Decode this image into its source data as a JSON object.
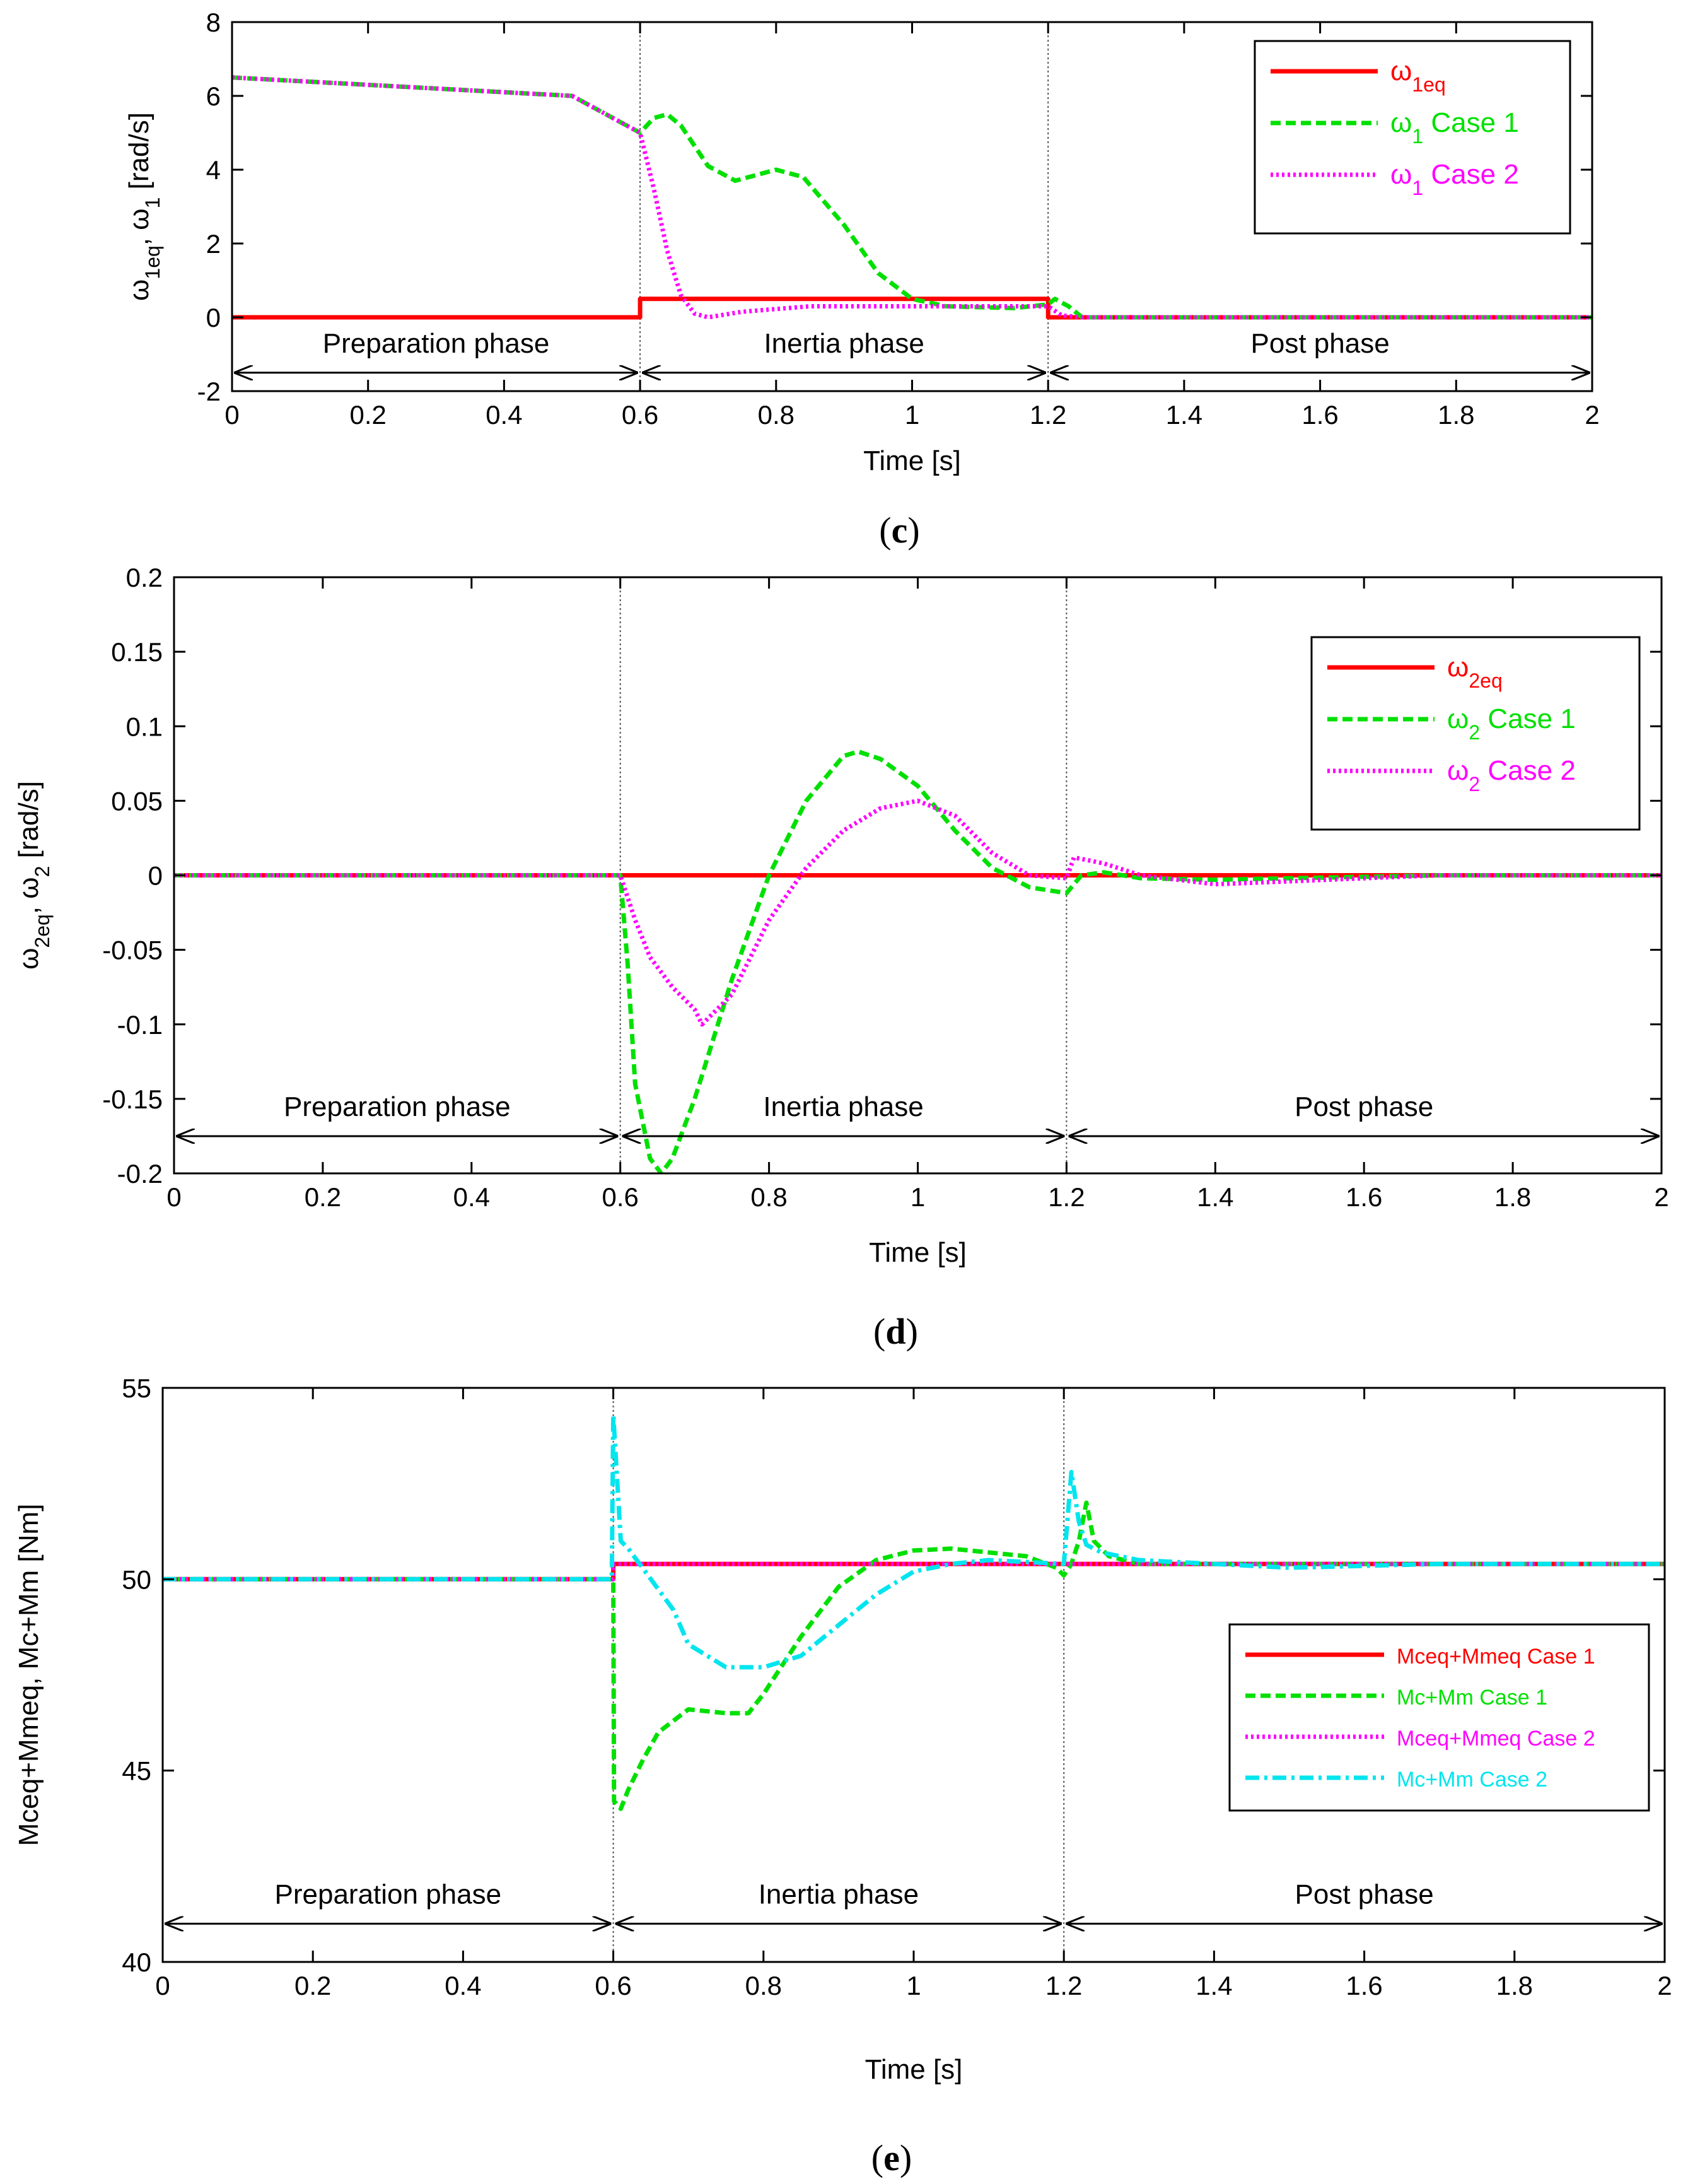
{
  "figure": {
    "panels": [
      {
        "id": "c",
        "label": "(c)",
        "xlabel": "Time [s]",
        "ylabel": "ω_{1eq}, ω_{1} [rad/s]",
        "xlim": [
          0,
          2
        ],
        "ylim": [
          -2,
          8
        ],
        "xticks": [
          0,
          0.2,
          0.4,
          0.6,
          0.8,
          1,
          1.2,
          1.4,
          1.6,
          1.8,
          2
        ],
        "yticks": [
          -2,
          0,
          2,
          4,
          6,
          8
        ],
        "phase_boundaries": [
          0.6,
          1.2
        ],
        "phase_arrow_y": -1.5,
        "phases": [
          {
            "name": "Preparation phase",
            "center": 0.3
          },
          {
            "name": "Inertia phase",
            "center": 0.9
          },
          {
            "name": "Post phase",
            "center": 1.6
          }
        ],
        "legend": [
          {
            "base": "ω",
            "sub": "1eq",
            "suffix": "",
            "color": "#ff0000",
            "style": "solid"
          },
          {
            "base": "ω",
            "sub": "1",
            "suffix": " Case 1",
            "color": "#00e000",
            "style": "dashed"
          },
          {
            "base": "ω",
            "sub": "1",
            "suffix": " Case 2",
            "color": "#ff00ff",
            "style": "dotted"
          }
        ]
      },
      {
        "id": "d",
        "label": "(d)",
        "xlabel": "Time [s]",
        "ylabel": "ω_{2eq}, ω_{2} [rad/s]",
        "xlim": [
          0,
          2
        ],
        "ylim": [
          -0.2,
          0.2
        ],
        "xticks": [
          0,
          0.2,
          0.4,
          0.6,
          0.8,
          1,
          1.2,
          1.4,
          1.6,
          1.8,
          2
        ],
        "yticks": [
          -0.2,
          -0.15,
          -0.1,
          -0.05,
          0,
          0.05,
          0.1,
          0.15,
          0.2
        ],
        "phase_boundaries": [
          0.6,
          1.2
        ],
        "phase_arrow_y": -0.175,
        "phases": [
          {
            "name": "Preparation phase",
            "center": 0.3
          },
          {
            "name": "Inertia phase",
            "center": 0.9
          },
          {
            "name": "Post phase",
            "center": 1.6
          }
        ],
        "legend": [
          {
            "base": "ω",
            "sub": "2eq",
            "suffix": "",
            "color": "#ff0000",
            "style": "solid"
          },
          {
            "base": "ω",
            "sub": "2",
            "suffix": " Case 1",
            "color": "#00e000",
            "style": "dashed"
          },
          {
            "base": "ω",
            "sub": "2",
            "suffix": " Case 2",
            "color": "#ff00ff",
            "style": "dotted"
          }
        ]
      },
      {
        "id": "e",
        "label": "(e)",
        "xlabel": "Time [s]",
        "ylabel": "Mceq+Mmeq, Mc+Mm [Nm]",
        "xlim": [
          0,
          2
        ],
        "ylim": [
          40,
          55
        ],
        "xticks": [
          0,
          0.2,
          0.4,
          0.6,
          0.8,
          1,
          1.2,
          1.4,
          1.6,
          1.8,
          2
        ],
        "yticks": [
          40,
          45,
          50,
          55
        ],
        "phase_boundaries": [
          0.6,
          1.2
        ],
        "phase_arrow_y": 41,
        "phases": [
          {
            "name": "Preparation phase",
            "center": 0.3
          },
          {
            "name": "Inertia phase",
            "center": 0.9
          },
          {
            "name": "Post phase",
            "center": 1.6
          }
        ],
        "legend": [
          {
            "base": "Mceq+Mmeq Case 1",
            "sub": "",
            "suffix": "",
            "color": "#ff0000",
            "style": "solid"
          },
          {
            "base": "Mc+Mm Case 1",
            "sub": "",
            "suffix": "",
            "color": "#00e000",
            "style": "dashed"
          },
          {
            "base": "Mceq+Mmeq Case 2",
            "sub": "",
            "suffix": "",
            "color": "#ff00ff",
            "style": "dotted"
          },
          {
            "base": "Mc+Mm Case 2",
            "sub": "",
            "suffix": "",
            "color": "#00e5ee",
            "style": "dashdot"
          }
        ]
      }
    ]
  },
  "chart_data": [
    {
      "type": "line",
      "title": "(c)",
      "xlabel": "Time [s]",
      "ylabel": "ω1eq, ω1 [rad/s]",
      "xlim": [
        0,
        2
      ],
      "ylim": [
        -2,
        8
      ],
      "series": [
        {
          "name": "ω1eq",
          "color": "#ff0000",
          "style": "solid",
          "points": [
            [
              0,
              0
            ],
            [
              0.6,
              0
            ],
            [
              0.6,
              0.5
            ],
            [
              1.2,
              0.5
            ],
            [
              1.2,
              0
            ],
            [
              2,
              0
            ]
          ]
        },
        {
          "name": "ω1 Case 1",
          "color": "#00e000",
          "style": "dashed",
          "points": [
            [
              0,
              6.5
            ],
            [
              0.5,
              6.0
            ],
            [
              0.6,
              5.0
            ],
            [
              0.62,
              5.4
            ],
            [
              0.64,
              5.5
            ],
            [
              0.66,
              5.2
            ],
            [
              0.7,
              4.1
            ],
            [
              0.74,
              3.7
            ],
            [
              0.8,
              4.0
            ],
            [
              0.84,
              3.8
            ],
            [
              0.9,
              2.5
            ],
            [
              0.95,
              1.2
            ],
            [
              1.0,
              0.5
            ],
            [
              1.05,
              0.3
            ],
            [
              1.15,
              0.25
            ],
            [
              1.2,
              0.35
            ],
            [
              1.21,
              0.5
            ],
            [
              1.23,
              0.3
            ],
            [
              1.25,
              0
            ],
            [
              2,
              0
            ]
          ]
        },
        {
          "name": "ω1 Case 2",
          "color": "#ff00ff",
          "style": "dotted",
          "points": [
            [
              0,
              6.5
            ],
            [
              0.5,
              6.0
            ],
            [
              0.6,
              5.0
            ],
            [
              0.62,
              3.5
            ],
            [
              0.64,
              1.8
            ],
            [
              0.66,
              0.6
            ],
            [
              0.68,
              0.1
            ],
            [
              0.7,
              0.0
            ],
            [
              0.75,
              0.15
            ],
            [
              0.85,
              0.3
            ],
            [
              1.0,
              0.3
            ],
            [
              1.1,
              0.3
            ],
            [
              1.2,
              0.3
            ],
            [
              1.22,
              0.05
            ],
            [
              1.25,
              0
            ],
            [
              2,
              0
            ]
          ]
        }
      ]
    },
    {
      "type": "line",
      "title": "(d)",
      "xlabel": "Time [s]",
      "ylabel": "ω2eq, ω2 [rad/s]",
      "xlim": [
        0,
        2
      ],
      "ylim": [
        -0.2,
        0.2
      ],
      "series": [
        {
          "name": "ω2eq",
          "color": "#ff0000",
          "style": "solid",
          "points": [
            [
              0,
              0
            ],
            [
              2,
              0
            ]
          ]
        },
        {
          "name": "ω2 Case 1",
          "color": "#00e000",
          "style": "dashed",
          "points": [
            [
              0,
              0
            ],
            [
              0.6,
              0
            ],
            [
              0.61,
              -0.06
            ],
            [
              0.62,
              -0.14
            ],
            [
              0.64,
              -0.19
            ],
            [
              0.655,
              -0.2
            ],
            [
              0.67,
              -0.19
            ],
            [
              0.7,
              -0.15
            ],
            [
              0.75,
              -0.07
            ],
            [
              0.8,
              0.0
            ],
            [
              0.85,
              0.05
            ],
            [
              0.9,
              0.08
            ],
            [
              0.92,
              0.083
            ],
            [
              0.95,
              0.078
            ],
            [
              1.0,
              0.06
            ],
            [
              1.05,
              0.03
            ],
            [
              1.1,
              0.005
            ],
            [
              1.15,
              -0.008
            ],
            [
              1.2,
              -0.012
            ],
            [
              1.22,
              0.0
            ],
            [
              1.25,
              0.002
            ],
            [
              1.3,
              -0.002
            ],
            [
              1.4,
              -0.003
            ],
            [
              1.5,
              -0.002
            ],
            [
              1.7,
              0.0
            ],
            [
              2,
              0
            ]
          ]
        },
        {
          "name": "ω2 Case 2",
          "color": "#ff00ff",
          "style": "dotted",
          "points": [
            [
              0,
              0
            ],
            [
              0.6,
              0
            ],
            [
              0.62,
              -0.03
            ],
            [
              0.64,
              -0.055
            ],
            [
              0.67,
              -0.075
            ],
            [
              0.7,
              -0.09
            ],
            [
              0.71,
              -0.1
            ],
            [
              0.75,
              -0.08
            ],
            [
              0.8,
              -0.03
            ],
            [
              0.85,
              0.005
            ],
            [
              0.9,
              0.03
            ],
            [
              0.95,
              0.045
            ],
            [
              1.0,
              0.05
            ],
            [
              1.05,
              0.04
            ],
            [
              1.1,
              0.015
            ],
            [
              1.15,
              0.0
            ],
            [
              1.2,
              -0.002
            ],
            [
              1.21,
              0.012
            ],
            [
              1.25,
              0.008
            ],
            [
              1.3,
              0.0
            ],
            [
              1.4,
              -0.006
            ],
            [
              1.5,
              -0.004
            ],
            [
              1.6,
              -0.002
            ],
            [
              1.7,
              0.0
            ],
            [
              2,
              0
            ]
          ]
        }
      ]
    },
    {
      "type": "line",
      "title": "(e)",
      "xlabel": "Time [s]",
      "ylabel": "Mceq+Mmeq, Mc+Mm [Nm]",
      "xlim": [
        0,
        2
      ],
      "ylim": [
        40,
        55
      ],
      "series": [
        {
          "name": "Mceq+Mmeq Case 1",
          "color": "#ff0000",
          "style": "solid",
          "points": [
            [
              0,
              50
            ],
            [
              0.6,
              50
            ],
            [
              0.6,
              50.4
            ],
            [
              2,
              50.4
            ]
          ]
        },
        {
          "name": "Mc+Mm Case 1",
          "color": "#00e000",
          "style": "dashed",
          "points": [
            [
              0,
              50
            ],
            [
              0.6,
              50
            ],
            [
              0.601,
              44.2
            ],
            [
              0.61,
              44.0
            ],
            [
              0.62,
              44.5
            ],
            [
              0.64,
              45.3
            ],
            [
              0.66,
              46.0
            ],
            [
              0.7,
              46.6
            ],
            [
              0.75,
              46.5
            ],
            [
              0.78,
              46.5
            ],
            [
              0.8,
              47.0
            ],
            [
              0.85,
              48.5
            ],
            [
              0.9,
              49.8
            ],
            [
              0.95,
              50.5
            ],
            [
              1.0,
              50.75
            ],
            [
              1.05,
              50.8
            ],
            [
              1.1,
              50.7
            ],
            [
              1.15,
              50.6
            ],
            [
              1.19,
              50.3
            ],
            [
              1.2,
              50.1
            ],
            [
              1.21,
              50.4
            ],
            [
              1.22,
              51.0
            ],
            [
              1.23,
              52.0
            ],
            [
              1.24,
              51.0
            ],
            [
              1.26,
              50.6
            ],
            [
              1.3,
              50.4
            ],
            [
              1.5,
              50.4
            ],
            [
              2,
              50.4
            ]
          ]
        },
        {
          "name": "Mceq+Mmeq Case 2",
          "color": "#ff00ff",
          "style": "dotted",
          "points": [
            [
              0,
              50
            ],
            [
              0.6,
              50
            ],
            [
              0.6,
              50.4
            ],
            [
              2,
              50.4
            ]
          ]
        },
        {
          "name": "Mc+Mm Case 2",
          "color": "#00e5ee",
          "style": "dashdot",
          "points": [
            [
              0,
              50
            ],
            [
              0.598,
              50
            ],
            [
              0.6,
              54.3
            ],
            [
              0.61,
              51.0
            ],
            [
              0.62,
              50.8
            ],
            [
              0.65,
              50.0
            ],
            [
              0.68,
              49.2
            ],
            [
              0.7,
              48.3
            ],
            [
              0.75,
              47.7
            ],
            [
              0.8,
              47.7
            ],
            [
              0.85,
              48.0
            ],
            [
              0.9,
              48.8
            ],
            [
              0.95,
              49.6
            ],
            [
              1.0,
              50.2
            ],
            [
              1.05,
              50.4
            ],
            [
              1.1,
              50.5
            ],
            [
              1.15,
              50.45
            ],
            [
              1.2,
              50.4
            ],
            [
              1.21,
              52.8
            ],
            [
              1.22,
              51.5
            ],
            [
              1.23,
              50.9
            ],
            [
              1.25,
              50.7
            ],
            [
              1.3,
              50.5
            ],
            [
              1.4,
              50.4
            ],
            [
              1.5,
              50.3
            ],
            [
              1.7,
              50.4
            ],
            [
              2,
              50.4
            ]
          ]
        }
      ]
    }
  ]
}
